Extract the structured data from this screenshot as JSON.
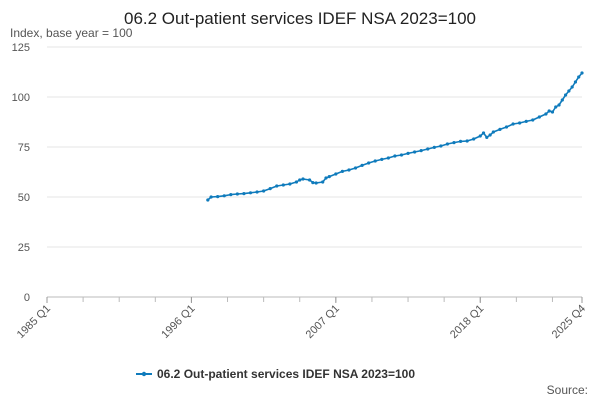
{
  "chart_data": {
    "type": "line",
    "title": "06.2 Out-patient services IDEF NSA 2023=100",
    "ylabel": "Index, base year = 100",
    "xlim": [
      1985.0,
      2025.75
    ],
    "ylim": [
      0,
      125
    ],
    "yticks": [
      0,
      25,
      50,
      75,
      100,
      125
    ],
    "ytick_labels": [
      "0",
      "25",
      "50",
      "75",
      "100",
      "125"
    ],
    "xticks": [
      1985.0,
      1996.0,
      2007.0,
      2018.0,
      2025.75
    ],
    "xtick_labels": [
      "1985 Q1",
      "1996 Q1",
      "2007 Q1",
      "2018 Q1",
      "2025 Q4"
    ],
    "grid": "horizontal",
    "legend": "bottom",
    "series": [
      {
        "name": "06.2 Out-patient services IDEF NSA 2023=100",
        "color": "#0f7bbc",
        "points": [
          [
            1997.25,
            48.5
          ],
          [
            1997.5,
            50.0
          ],
          [
            1998.0,
            50.2
          ],
          [
            1998.5,
            50.6
          ],
          [
            1999.0,
            51.2
          ],
          [
            1999.5,
            51.5
          ],
          [
            2000.0,
            51.7
          ],
          [
            2000.5,
            52.1
          ],
          [
            2001.0,
            52.5
          ],
          [
            2001.5,
            53.0
          ],
          [
            2002.0,
            54.2
          ],
          [
            2002.5,
            55.5
          ],
          [
            2003.0,
            56.0
          ],
          [
            2003.5,
            56.5
          ],
          [
            2004.0,
            57.5
          ],
          [
            2004.25,
            58.5
          ],
          [
            2004.5,
            59.0
          ],
          [
            2005.0,
            58.5
          ],
          [
            2005.25,
            57.2
          ],
          [
            2005.5,
            57.0
          ],
          [
            2006.0,
            57.5
          ],
          [
            2006.25,
            59.5
          ],
          [
            2006.5,
            60.2
          ],
          [
            2007.0,
            61.5
          ],
          [
            2007.5,
            62.8
          ],
          [
            2008.0,
            63.5
          ],
          [
            2008.5,
            64.5
          ],
          [
            2009.0,
            65.8
          ],
          [
            2009.5,
            67.0
          ],
          [
            2010.0,
            68.0
          ],
          [
            2010.5,
            68.8
          ],
          [
            2011.0,
            69.5
          ],
          [
            2011.5,
            70.5
          ],
          [
            2012.0,
            71.0
          ],
          [
            2012.5,
            71.8
          ],
          [
            2013.0,
            72.5
          ],
          [
            2013.5,
            73.2
          ],
          [
            2014.0,
            74.0
          ],
          [
            2014.5,
            74.8
          ],
          [
            2015.0,
            75.5
          ],
          [
            2015.5,
            76.5
          ],
          [
            2016.0,
            77.2
          ],
          [
            2016.5,
            77.8
          ],
          [
            2017.0,
            78.0
          ],
          [
            2017.5,
            79.0
          ],
          [
            2018.0,
            80.5
          ],
          [
            2018.25,
            82.0
          ],
          [
            2018.5,
            79.8
          ],
          [
            2018.75,
            81.0
          ],
          [
            2019.0,
            82.5
          ],
          [
            2019.5,
            83.8
          ],
          [
            2020.0,
            85.0
          ],
          [
            2020.5,
            86.5
          ],
          [
            2021.0,
            87.0
          ],
          [
            2021.5,
            87.8
          ],
          [
            2022.0,
            88.5
          ],
          [
            2022.5,
            90.0
          ],
          [
            2023.0,
            91.5
          ],
          [
            2023.25,
            93.0
          ],
          [
            2023.5,
            92.5
          ],
          [
            2023.75,
            95.0
          ],
          [
            2024.0,
            96.0
          ],
          [
            2024.25,
            98.5
          ],
          [
            2024.5,
            101.0
          ],
          [
            2024.75,
            103.0
          ],
          [
            2025.0,
            105.0
          ],
          [
            2025.25,
            107.5
          ],
          [
            2025.5,
            110.0
          ],
          [
            2025.75,
            112.0
          ]
        ]
      }
    ],
    "source_label": "Source:"
  }
}
